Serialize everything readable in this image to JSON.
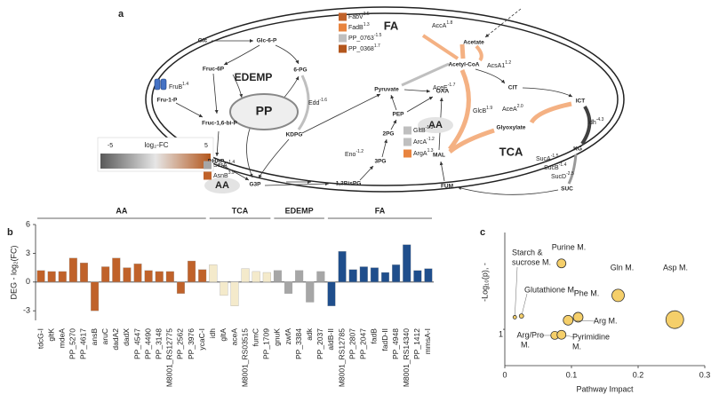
{
  "panel_labels": [
    "a",
    "b",
    "c"
  ],
  "diagram": {
    "nodes": [
      "Glc",
      "Glc-6-P",
      "Fruc-6P",
      "6-PG",
      "Fru-1-P",
      "Fruc-1,6-bi-P",
      "DHAP",
      "KDPG",
      "G3P",
      "1,3BisPG",
      "3PG",
      "2PG",
      "PEP",
      "Pyruvate",
      "Acetyl-CoA",
      "Acetate",
      "OAA",
      "CIT",
      "ICT",
      "Glyoxylate",
      "MAL",
      "KG",
      "SUC",
      "FUM"
    ],
    "pathways": [
      "EDEMP",
      "PP",
      "AA",
      "AA",
      "FA",
      "TCA"
    ],
    "enzymes": [
      {
        "name": "FruB",
        "fc": "1.4"
      },
      {
        "name": "Edd",
        "fc": "-1.6"
      },
      {
        "name": "Eno",
        "fc": "-1.2"
      },
      {
        "name": "AceE",
        "fc": "-1.7"
      },
      {
        "name": "AccA",
        "fc": "1.8"
      },
      {
        "name": "AcsA1",
        "fc": "1.2"
      },
      {
        "name": "GlcB",
        "fc": "1.9"
      },
      {
        "name": "AceA",
        "fc": "2.0"
      },
      {
        "name": "Idh",
        "fc": "-4.3"
      },
      {
        "name": "SucA",
        "fc": "-1.5"
      },
      {
        "name": "SucB",
        "fc": "-1.4"
      },
      {
        "name": "SucD",
        "fc": "-2.5"
      },
      {
        "name": "SerA",
        "fc": "-1.4",
        "color": "#a6a6a6"
      },
      {
        "name": "AsnB",
        "fc": "3.9",
        "color": "#c0622a"
      },
      {
        "name": "GltB",
        "fc": "-1.3",
        "color": "#bfbfbf"
      },
      {
        "name": "ArcA",
        "fc": "-1.2",
        "color": "#bfbfbf"
      },
      {
        "name": "ArgA",
        "fc": "1.3",
        "color": "#e8843f"
      },
      {
        "name": "FabV",
        "fc": "1.5",
        "color": "#c0622a"
      },
      {
        "name": "FadB",
        "fc": "1.3",
        "color": "#e8843f"
      },
      {
        "name": "PP_0763",
        "fc": "-1.5",
        "color": "#bfbfbf"
      },
      {
        "name": "PP_0368",
        "fc": "1.7",
        "color": "#b3561c"
      }
    ],
    "colorbar": {
      "label": "log₂-FC",
      "min": "-5",
      "max": "5"
    }
  },
  "chart_data": [
    {
      "type": "bar",
      "y_label": "DEG - log₂(FC)",
      "ylim": [
        -4,
        6
      ],
      "yticks": [
        -3,
        0,
        3,
        6
      ],
      "series": [
        {
          "name": "AA",
          "color": "#c0622a",
          "categories": [
            "tdcG-I",
            "gltK",
            "mdeA",
            "PP_5270",
            "PP_4617",
            "ansB",
            "aruC",
            "dadA2",
            "dadX",
            "PP_4547",
            "PP_4490",
            "PP_3148",
            "M8001_RS12775",
            "PP_2562",
            "PP_3976",
            "ycaC-I"
          ],
          "values": [
            1.2,
            1.1,
            1.1,
            2.5,
            2.0,
            -3.0,
            1.6,
            2.5,
            1.5,
            1.9,
            1.2,
            1.1,
            1.1,
            -1.2,
            2.2,
            1.3
          ]
        },
        {
          "name": "TCA",
          "color": "#f4eacb",
          "categories": [
            "idh",
            "gltA",
            "aceA",
            "M8001_RS03515",
            "fumC",
            "PP_1709"
          ],
          "values": [
            1.8,
            -1.4,
            -2.5,
            1.4,
            1.1,
            1.0
          ]
        },
        {
          "name": "EDEMP",
          "color": "#a6a6a6",
          "categories": [
            "gnuK",
            "zwfA",
            "PP_3384",
            "adk",
            "PP_2037"
          ],
          "values": [
            1.2,
            -1.2,
            1.2,
            -2.1,
            1.1
          ]
        },
        {
          "name": "FA",
          "color": "#1f4e8c",
          "categories": [
            "aldB-II",
            "M8001_RS12785",
            "PP_2807",
            "PP_2047",
            "fadB",
            "fadD-II",
            "PP_4948",
            "M8001_RS14340",
            "PP_1412",
            "mmsA-I"
          ],
          "values": [
            -2.5,
            3.2,
            1.3,
            1.6,
            1.5,
            1.0,
            1.8,
            3.9,
            1.2,
            1.4
          ]
        }
      ]
    },
    {
      "type": "scatter",
      "x_label": "Pathway Impact",
      "y_label": "-Log₁₀(p), -",
      "color": "#f5cf6a",
      "xlim": [
        0,
        0.3
      ],
      "xticks": [
        0,
        0.1,
        0.2,
        0.3
      ],
      "ylim": [
        0.4,
        2.6
      ],
      "yticks": [
        1
      ],
      "labels": [
        [
          "Starch &",
          "sucrose M."
        ],
        [
          "Glutathione M."
        ],
        [
          "Purine M."
        ],
        [
          "Gln M."
        ],
        [
          "Asp M."
        ],
        [
          "Phe M."
        ],
        [
          "Arg M."
        ],
        [
          "Arg/Pro",
          "M."
        ],
        [
          "Pyrimidine",
          "M."
        ]
      ],
      "x": [
        0.015,
        0.025,
        0.085,
        0.17,
        0.255,
        0.11,
        0.095,
        0.075,
        0.085
      ],
      "y": [
        1.2,
        1.22,
        2.09,
        1.56,
        1.16,
        1.2,
        1.15,
        0.9,
        0.91
      ],
      "sizes": [
        2,
        2.5,
        5,
        7,
        10,
        5.5,
        5.5,
        4.5,
        5
      ]
    }
  ]
}
